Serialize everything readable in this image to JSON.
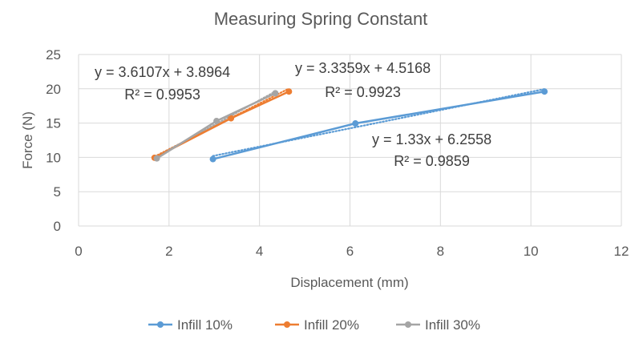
{
  "chart_data": {
    "type": "scatter",
    "title": "Measuring Spring Constant",
    "xlabel": "Displacement (mm)",
    "ylabel": "Force (N)",
    "xlim": [
      0,
      12
    ],
    "ylim": [
      0,
      25
    ],
    "xticks": [
      0,
      2,
      4,
      6,
      8,
      10,
      12
    ],
    "yticks": [
      0,
      5,
      10,
      15,
      20,
      25
    ],
    "grid": "horizontal",
    "legend_position": "bottom",
    "series": [
      {
        "name": "Infill 10%",
        "color": "#5B9BD5",
        "x": [
          2.97,
          6.12,
          10.3
        ],
        "y": [
          9.75,
          14.95,
          19.6
        ],
        "trendline": {
          "slope": 1.33,
          "intercept": 6.2558,
          "equation": "y = 1.33x + 6.2558",
          "r2": "R² = 0.9859"
        }
      },
      {
        "name": "Infill 20%",
        "color": "#ED7D31",
        "x": [
          1.68,
          3.37,
          4.65
        ],
        "y": [
          9.95,
          15.7,
          19.6
        ],
        "trendline": {
          "slope": 3.3359,
          "intercept": 4.5168,
          "equation": "y = 3.3359x + 4.5168",
          "r2": "R² = 0.9923"
        }
      },
      {
        "name": "Infill 30%",
        "color": "#A5A5A5",
        "x": [
          1.73,
          3.05,
          4.35
        ],
        "y": [
          9.85,
          15.3,
          19.35
        ],
        "trendline": {
          "slope": 3.6107,
          "intercept": 3.8964,
          "equation": "y = 3.6107x + 3.8964",
          "r2": "R² = 0.9953"
        }
      }
    ]
  }
}
